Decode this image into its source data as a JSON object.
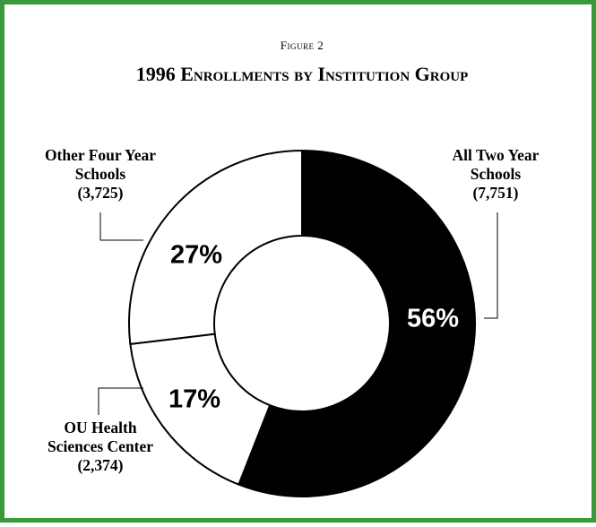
{
  "chart_data": {
    "type": "pie",
    "figure_label": "Figure 2",
    "title": "1996 Enrollments by Institution Group",
    "colors": {
      "frame": "#3a9a3a",
      "fill_dark": "#000000",
      "fill_light": "#ffffff"
    },
    "slices": [
      {
        "label": "All Two Year Schools",
        "label_lines": [
          "All Two Year",
          "Schools"
        ],
        "count_text": "(7,751)",
        "value": 7751,
        "percent_text": "56%",
        "color": "#000000",
        "percent_color": "#ffffff"
      },
      {
        "label": "OU Health Sciences Center",
        "label_lines": [
          "OU Health",
          "Sciences Center"
        ],
        "count_text": "(2,374)",
        "value": 2374,
        "percent_text": "17%",
        "color": "#ffffff",
        "percent_color": "#000000"
      },
      {
        "label": "Other Four Year Schools",
        "label_lines": [
          "Other Four Year",
          "Schools"
        ],
        "count_text": "(3,725)",
        "value": 3725,
        "percent_text": "27%",
        "color": "#ffffff",
        "percent_color": "#000000"
      }
    ]
  }
}
